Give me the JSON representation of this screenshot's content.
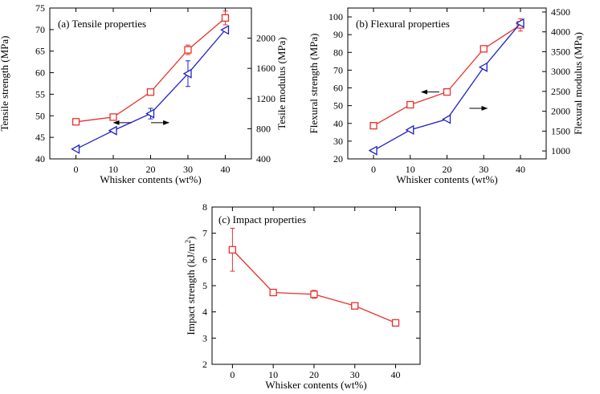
{
  "colors": {
    "red": "#e8312b",
    "blue": "#2020c8",
    "axis": "#000000"
  },
  "chart_data": [
    {
      "id": "a",
      "type": "line",
      "title": "(a) Tensile properties",
      "xlabel": "Whisker contents (wt%)",
      "ylabel": "Tensile strength (MPa)",
      "y2label": "Tesile modulus (MPa)",
      "categories": [
        0,
        10,
        20,
        30,
        40
      ],
      "xticks": [
        "0",
        "10",
        "20",
        "30",
        "40"
      ],
      "ylim": [
        40,
        75
      ],
      "yticks": [
        "40",
        "45",
        "50",
        "55",
        "60",
        "65",
        "70",
        "75"
      ],
      "y2lim": [
        400,
        2400
      ],
      "y2ticks": [
        "400",
        "800",
        "1200",
        "1600",
        "2000"
      ],
      "series": [
        {
          "axis": "left",
          "color": "red",
          "marker": "square",
          "values": [
            48.6,
            49.7,
            55.5,
            65.3,
            72.7
          ],
          "errors": [
            0,
            0,
            0,
            1.1,
            1.6
          ]
        },
        {
          "axis": "right",
          "color": "blue",
          "marker": "triangle-left",
          "values": [
            530,
            775,
            1000,
            1530,
            2110
          ],
          "errors": [
            0,
            0,
            70,
            170,
            0
          ]
        }
      ],
      "arrows": [
        {
          "direction": "left",
          "axis": "left",
          "x": 12.5,
          "y": 48.4
        },
        {
          "direction": "right",
          "axis": "left",
          "x": 22.5,
          "y": 48.4
        }
      ]
    },
    {
      "id": "b",
      "type": "line",
      "title": "(b) Flexural properties",
      "xlabel": "Whisker contents (wt%)",
      "ylabel": "Flexural strength (MPa)",
      "y2label": "Flexural modulus (MPa)",
      "categories": [
        0,
        10,
        20,
        30,
        40
      ],
      "xticks": [
        "0",
        "10",
        "20",
        "30",
        "40"
      ],
      "ylim": [
        20,
        105
      ],
      "yticks": [
        "20",
        "30",
        "40",
        "50",
        "60",
        "70",
        "80",
        "90",
        "100"
      ],
      "y2lim": [
        800,
        4600
      ],
      "y2ticks": [
        "1000",
        "1500",
        "2000",
        "2500",
        "3000",
        "3500",
        "4000",
        "4500"
      ],
      "series": [
        {
          "axis": "left",
          "color": "red",
          "marker": "square",
          "values": [
            38.7,
            50.5,
            57.7,
            82.0,
            95.5
          ],
          "errors": [
            0,
            0,
            0,
            0,
            3.5
          ]
        },
        {
          "axis": "right",
          "color": "blue",
          "marker": "triangle-left",
          "values": [
            1010,
            1530,
            1800,
            3110,
            4220
          ],
          "errors": [
            0,
            0,
            0,
            0,
            0
          ]
        }
      ],
      "arrows": [
        {
          "direction": "left",
          "axis": "left",
          "x": 15.5,
          "y": 57.7
        },
        {
          "direction": "right",
          "axis": "left",
          "x": 28.5,
          "y": 48.5
        }
      ]
    },
    {
      "id": "c",
      "type": "line",
      "title": "(c) Impact properties",
      "xlabel": "Whisker contents (wt%)",
      "ylabel": "Impact strength (kJ/m",
      "ylabel_sup": "2",
      "ylabel_end": ")",
      "categories": [
        0,
        10,
        20,
        30,
        40
      ],
      "xticks": [
        "0",
        "10",
        "20",
        "30",
        "40"
      ],
      "ylim": [
        2,
        8
      ],
      "yticks": [
        "2",
        "3",
        "4",
        "5",
        "6",
        "7",
        "8"
      ],
      "series": [
        {
          "axis": "left",
          "color": "red",
          "marker": "square",
          "values": [
            6.37,
            4.74,
            4.67,
            4.23,
            3.58
          ],
          "errors": [
            0.82,
            0,
            0.15,
            0,
            0
          ]
        }
      ]
    }
  ]
}
